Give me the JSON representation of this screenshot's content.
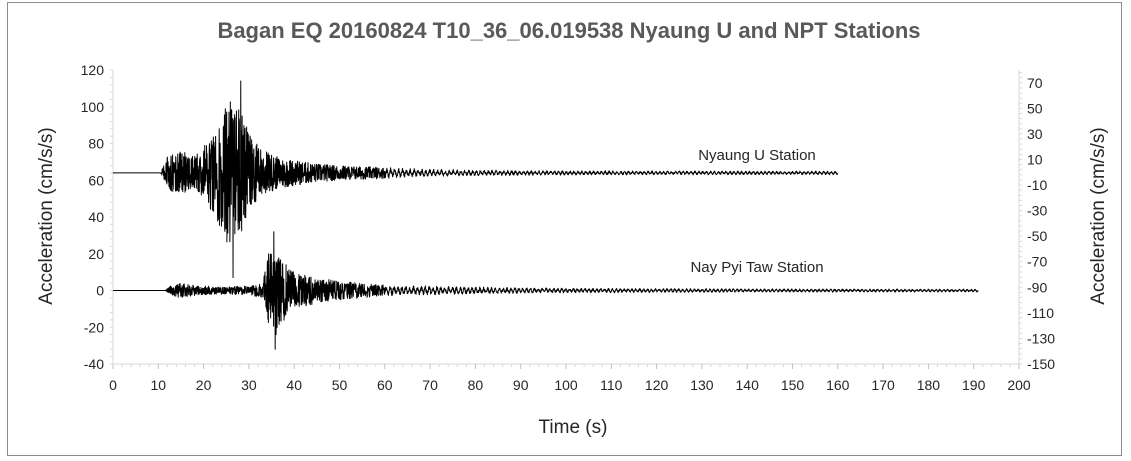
{
  "chart_data": {
    "type": "line",
    "title": "Bagan EQ 20160824 T10_36_06.019538 Nyaung U and NPT Stations",
    "xlabel": "Time (s)",
    "ylabel_left": "Acceleration (cm/s/s)",
    "ylabel_right": "Acceleration (cm/s/s)",
    "xlim": [
      0,
      200
    ],
    "xticks": [
      "0",
      "10",
      "20",
      "30",
      "40",
      "50",
      "60",
      "70",
      "80",
      "90",
      "100",
      "110",
      "120",
      "130",
      "140",
      "150",
      "160",
      "170",
      "180",
      "190",
      "200"
    ],
    "ylim_left": [
      -40,
      120
    ],
    "yticks_left": [
      "120",
      "100",
      "80",
      "60",
      "40",
      "20",
      "0",
      "-20",
      "-40"
    ],
    "ylim_right": [
      -150,
      80
    ],
    "yticks_right": [
      "70",
      "50",
      "30",
      "10",
      "-10",
      "-30",
      "-50",
      "-70",
      "-90",
      "-110",
      "-130",
      "-150"
    ],
    "grid": false,
    "legend": "none",
    "series_color": "#000000",
    "series": [
      {
        "label": "Nyaung U Station",
        "baseline": 64,
        "x_start": 0,
        "x_end": 160,
        "onset": 10.5,
        "peak_max": 114,
        "peak_max_t": 28.2,
        "peak_min": 7,
        "peak_min_t": 26.5,
        "envelope_t": [
          0,
          10.5,
          12,
          15,
          18,
          20,
          22,
          24,
          25,
          26,
          27,
          28,
          30,
          33,
          36,
          40,
          45,
          50,
          60,
          70,
          80,
          90,
          100,
          120,
          140,
          160
        ],
        "envelope_a": [
          0,
          0,
          9,
          12,
          9,
          14,
          22,
          32,
          38,
          42,
          38,
          34,
          22,
          13,
          9,
          7,
          5,
          4,
          3,
          2,
          1.6,
          1.4,
          1.2,
          1.1,
          1,
          1
        ]
      },
      {
        "label": "Nay Pyi Taw Station",
        "baseline": 0,
        "x_start": 0,
        "x_end": 191,
        "onset": 11.5,
        "peak_max": 32,
        "peak_max_t": 35.5,
        "peak_min": -32,
        "peak_min_t": 35.8,
        "envelope_t": [
          0,
          11.5,
          13,
          15,
          17,
          20,
          25,
          30,
          33,
          34.5,
          36,
          38,
          40,
          45,
          50,
          55,
          60,
          70,
          80,
          90,
          100,
          120,
          150,
          191
        ],
        "envelope_a": [
          0,
          0,
          3,
          4,
          3,
          2.5,
          2,
          2.5,
          4,
          22,
          24,
          15,
          10,
          7,
          5,
          4,
          3,
          2.5,
          2,
          1.6,
          1.3,
          1.1,
          0.9,
          0.8
        ]
      }
    ]
  }
}
